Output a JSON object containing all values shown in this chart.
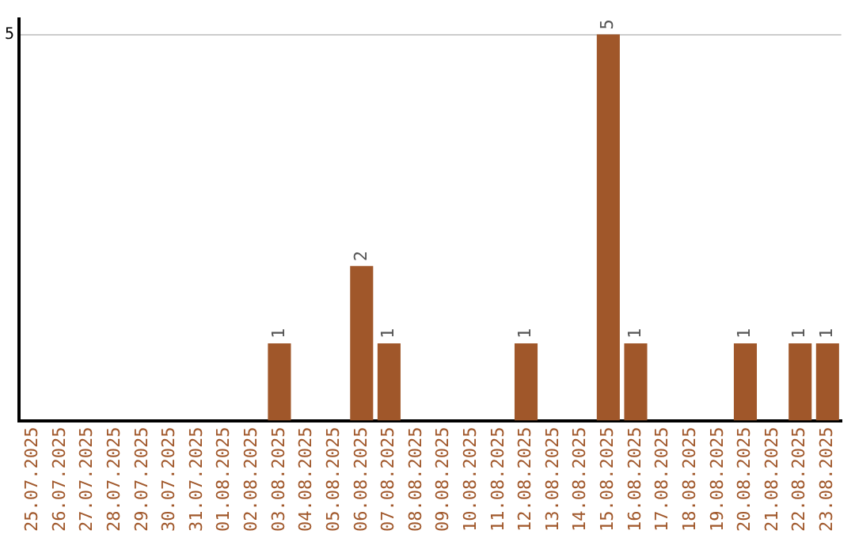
{
  "chart_data": {
    "type": "bar",
    "categories": [
      "25.07.2025",
      "26.07.2025",
      "27.07.2025",
      "28.07.2025",
      "29.07.2025",
      "30.07.2025",
      "31.07.2025",
      "01.08.2025",
      "02.08.2025",
      "03.08.2025",
      "04.08.2025",
      "05.08.2025",
      "06.08.2025",
      "07.08.2025",
      "08.08.2025",
      "09.08.2025",
      "10.08.2025",
      "11.08.2025",
      "12.08.2025",
      "13.08.2025",
      "14.08.2025",
      "15.08.2025",
      "16.08.2025",
      "17.08.2025",
      "18.08.2025",
      "19.08.2025",
      "20.08.2025",
      "21.08.2025",
      "22.08.2025",
      "23.08.2025"
    ],
    "values": [
      0,
      0,
      0,
      0,
      0,
      0,
      0,
      0,
      0,
      1,
      0,
      0,
      2,
      1,
      0,
      0,
      0,
      0,
      1,
      0,
      0,
      5,
      1,
      0,
      0,
      0,
      1,
      0,
      1,
      1
    ],
    "color": "#a0572a",
    "value_labels": [
      null,
      null,
      null,
      null,
      null,
      null,
      null,
      null,
      null,
      "1",
      null,
      null,
      "2",
      "1",
      null,
      null,
      null,
      null,
      "1",
      null,
      null,
      "5",
      "1",
      null,
      null,
      null,
      "1",
      null,
      "1",
      "1"
    ],
    "ylim": [
      0,
      5.2
    ],
    "yticks": [
      5
    ],
    "grid": "y",
    "legend": false
  }
}
